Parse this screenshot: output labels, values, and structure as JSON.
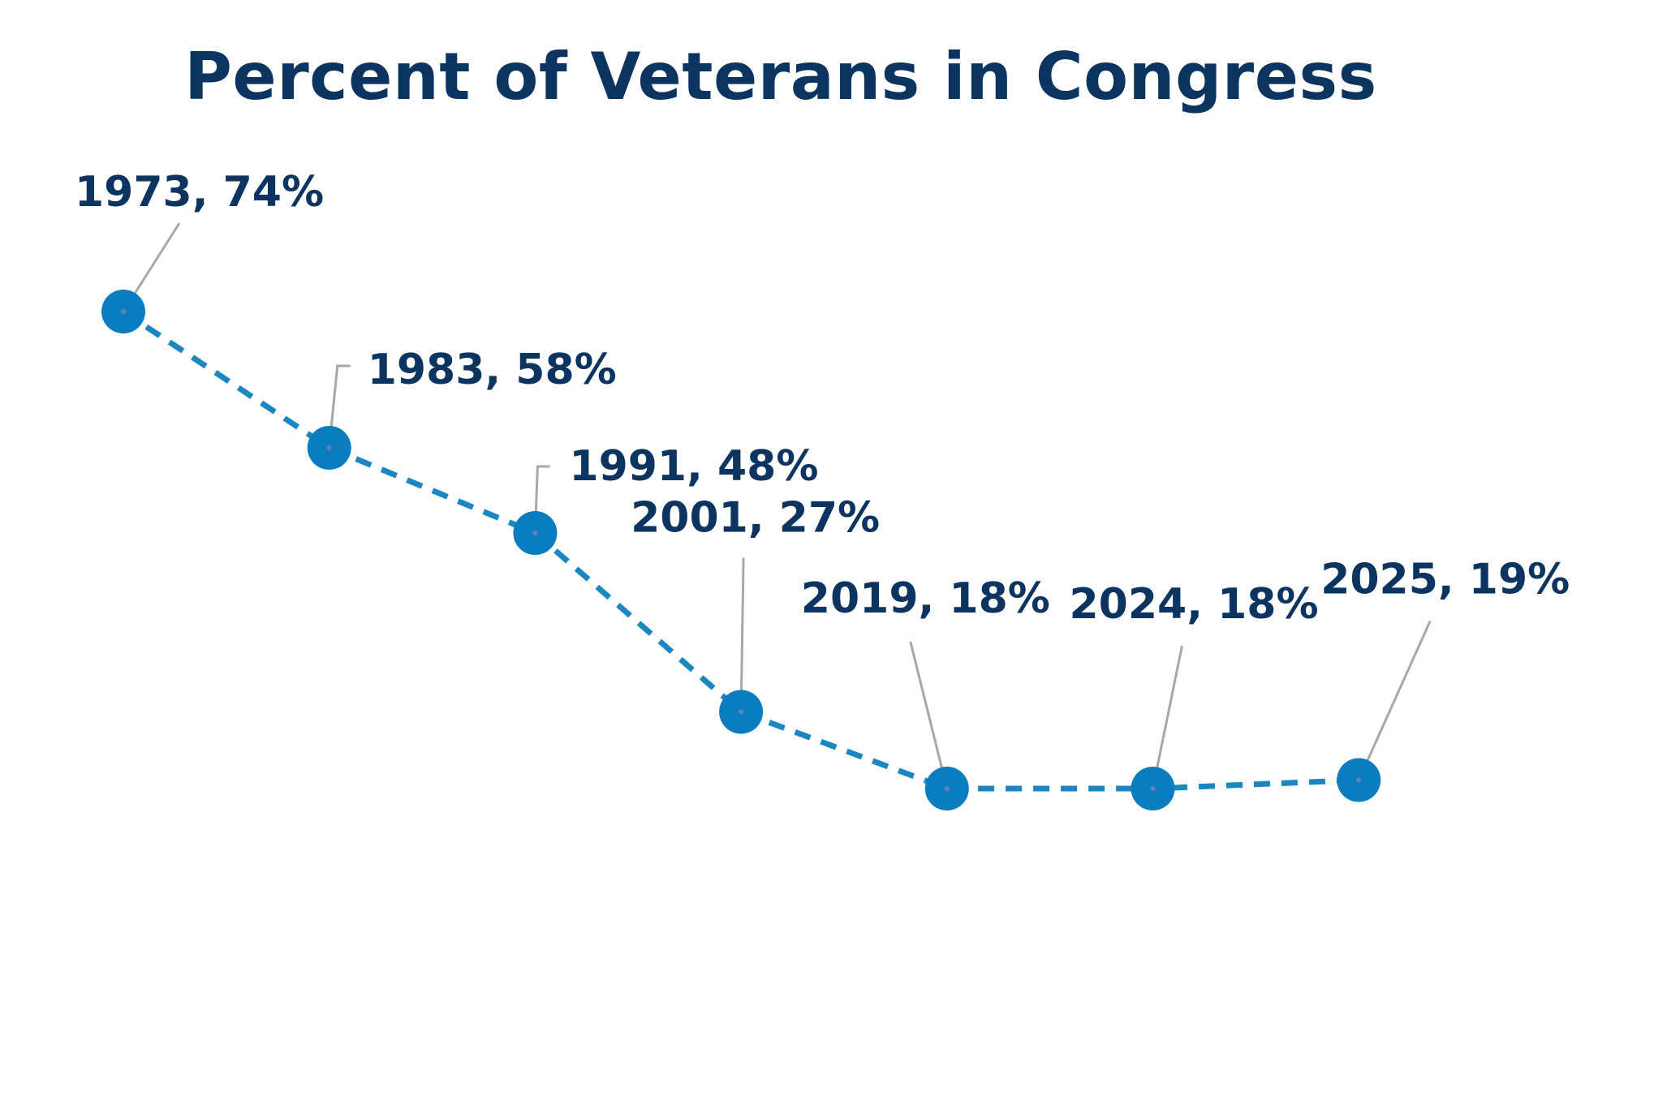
{
  "chart_data": {
    "type": "line",
    "title": "Percent of Veterans in Congress",
    "xlabel": "",
    "ylabel": "",
    "grid": false,
    "series": [
      {
        "points": [
          {
            "x": 1973,
            "y": 74,
            "label": "1973, 74%"
          },
          {
            "x": 1983,
            "y": 58,
            "label": "1983, 58%"
          },
          {
            "x": 1991,
            "y": 48,
            "label": "1991, 48%"
          },
          {
            "x": 2001,
            "y": 27,
            "label": "2001, 27%"
          },
          {
            "x": 2019,
            "y": 18,
            "label": "2019, 18%"
          },
          {
            "x": 2024,
            "y": 18,
            "label": "2024, 18%"
          },
          {
            "x": 2025,
            "y": 19,
            "label": "2025, 19%"
          }
        ]
      }
    ],
    "colors": {
      "line": "#1b87c2",
      "marker": "#0a7dc1",
      "text": "#0b3560",
      "leader": "#a7a7a7"
    }
  }
}
